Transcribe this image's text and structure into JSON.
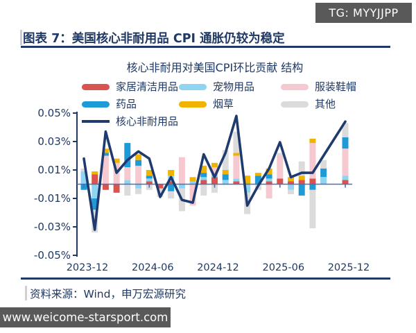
{
  "watermark_top": "TG: MYYJJPP",
  "figure_title": "图表 7：美国核心非耐用品 CPI 通胀仍较为稳定",
  "source_note": "资料来源：Wind，申万宏源研究",
  "watermark_bottom": "www.weicome-starsport.com",
  "colors": {
    "navy_text": "#1F3864",
    "line": "#1E3A6E",
    "zero_line": "#4A6FB5",
    "badge_bg": "#595959",
    "red": "#D9534F",
    "lightblue": "#8FD4F0",
    "pink": "#F5C9CF",
    "blue": "#1E9BD7",
    "yellow": "#F0B400",
    "gray": "#DBDBDB"
  },
  "chart_data": {
    "type": "bar",
    "subtype": "stacked-bar-with-line-overlay",
    "title": "核心非耐用对美国CPI环比贡献 结构",
    "xlabel": "",
    "ylabel": "",
    "unit": "%",
    "ylim": [
      -0.05,
      0.05
    ],
    "grid": false,
    "legend_position": "top",
    "y_tick_labels": [
      "0.05%",
      "0.03%",
      "0.01%",
      "-0.01%",
      "-0.03%",
      "-0.05%"
    ],
    "y_tick_values": [
      0.05,
      0.03,
      0.01,
      -0.01,
      -0.03,
      -0.05
    ],
    "x_tick_labels": [
      "2023-12",
      "2024-06",
      "2024-12",
      "2025-06",
      "2025-12"
    ],
    "x_tick_indices": [
      0,
      6,
      12,
      18,
      24
    ],
    "x": [
      "2023-12",
      "2024-01",
      "2024-02",
      "2024-03",
      "2024-04",
      "2024-05",
      "2024-06",
      "2024-07",
      "2024-08",
      "2024-09",
      "2024-10",
      "2024-11",
      "2024-12",
      "2025-01",
      "2025-02",
      "2025-03",
      "2025-04",
      "2025-05",
      "2025-06",
      "2025-07",
      "2025-08",
      "2025-09",
      "2025-10",
      "2025-11",
      "2025-12"
    ],
    "series": [
      {
        "name": "家居清洁用品",
        "type": "bar",
        "color": "#D9534F",
        "values": [
          0,
          0.007,
          -0.004,
          -0.006,
          0,
          0,
          0.002,
          -0.003,
          0.002,
          0,
          0,
          0.003,
          0.005,
          0,
          0.002,
          0,
          0,
          0.002,
          0.004,
          0.002,
          0.003,
          0.004,
          0,
          0,
          0.003
        ]
      },
      {
        "name": "宠物用品",
        "type": "bar",
        "color": "#8FD4F0",
        "values": [
          0.009,
          -0.01,
          0,
          0,
          0.003,
          -0.003,
          0.002,
          0,
          0.004,
          -0.003,
          0.002,
          0.002,
          0.002,
          0.003,
          0.002,
          -0.006,
          0,
          0.002,
          0,
          -0.004,
          0,
          0,
          0.005,
          0,
          0.003
        ]
      },
      {
        "name": "服装鞋帽",
        "type": "bar",
        "color": "#F5C9CF",
        "values": [
          0,
          0,
          0.02,
          0.015,
          0.009,
          0.013,
          0,
          0,
          0,
          0.019,
          -0.015,
          0,
          0.005,
          0,
          0.016,
          0,
          0,
          -0.01,
          0.016,
          0,
          0,
          0.025,
          0,
          0,
          0.019
        ]
      },
      {
        "name": "药品",
        "type": "bar",
        "color": "#1E9BD7",
        "values": [
          -0.004,
          -0.008,
          0.002,
          0,
          0.017,
          0.004,
          0.002,
          0,
          -0.005,
          0,
          0,
          0.003,
          0,
          0.004,
          0,
          0,
          0.006,
          0.003,
          0,
          0,
          -0.008,
          -0.004,
          0.006,
          0,
          0.008
        ]
      },
      {
        "name": "烟草",
        "type": "bar",
        "color": "#F0B400",
        "values": [
          0,
          0.002,
          0.003,
          0.003,
          0,
          0.004,
          0.004,
          0,
          0.004,
          0,
          0.003,
          0.005,
          0.003,
          0.003,
          0.002,
          0.006,
          0.002,
          0.004,
          0,
          0.003,
          0.003,
          0.003,
          0,
          0,
          0
        ]
      },
      {
        "name": "其他",
        "type": "bar",
        "color": "#DBDBDB",
        "values": [
          0.002,
          -0.016,
          0,
          0,
          -0.008,
          -0.004,
          -0.004,
          -0.006,
          -0.005,
          -0.016,
          0,
          -0.008,
          -0.006,
          0.014,
          0.015,
          -0.015,
          -0.004,
          0,
          0.002,
          -0.003,
          0.01,
          -0.027,
          0.006,
          0,
          0.01
        ]
      },
      {
        "name": "核心非耐用品",
        "type": "line",
        "color": "#1E3A6E",
        "values": [
          0.018,
          -0.032,
          0.037,
          0.008,
          0.017,
          0.023,
          0.018,
          -0.009,
          0.005,
          -0.011,
          -0.013,
          0.021,
          0.005,
          0.022,
          0.048,
          -0.015,
          -0.001,
          0.011,
          0.0295,
          0.005,
          0.008,
          0.008,
          0.02,
          0.032,
          0.044
        ]
      }
    ]
  }
}
